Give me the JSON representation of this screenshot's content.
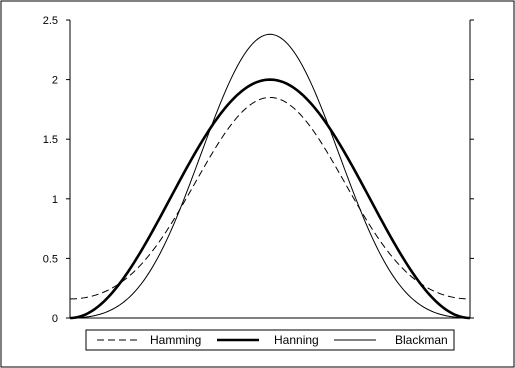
{
  "chart_data": {
    "type": "line",
    "title": "",
    "xlabel": "",
    "ylabel": "",
    "xlim": [
      0,
      1
    ],
    "ylim": [
      0,
      2.5
    ],
    "y_ticks": [
      "0",
      "0.5",
      "1",
      "1.5",
      "2",
      "2.5"
    ],
    "grid": false,
    "legend_position": "bottom",
    "series": [
      {
        "name": "Hamming",
        "style": "dashed",
        "x": [
          0,
          0.1,
          0.2,
          0.3,
          0.4,
          0.5,
          0.6,
          0.7,
          0.8,
          0.9,
          1
        ],
        "values": [
          0.16,
          0.26,
          0.55,
          1.0,
          1.46,
          1.85,
          1.46,
          1.0,
          0.55,
          0.26,
          0.16
        ]
      },
      {
        "name": "Hanning",
        "style": "thick",
        "x": [
          0,
          0.1,
          0.2,
          0.3,
          0.4,
          0.5,
          0.6,
          0.7,
          0.8,
          0.9,
          1
        ],
        "values": [
          0,
          0.19,
          0.69,
          1.31,
          1.81,
          2.0,
          1.81,
          1.31,
          0.69,
          0.19,
          0
        ]
      },
      {
        "name": "Blackman",
        "style": "thin",
        "x": [
          0,
          0.1,
          0.2,
          0.3,
          0.4,
          0.5,
          0.6,
          0.7,
          0.8,
          0.9,
          1
        ],
        "values": [
          0,
          0.06,
          0.36,
          1.07,
          1.89,
          2.38,
          1.89,
          1.07,
          0.36,
          0.06,
          0
        ]
      }
    ],
    "colors": {
      "line": "#000000",
      "axis": "#000000",
      "frame": "#000000"
    }
  }
}
